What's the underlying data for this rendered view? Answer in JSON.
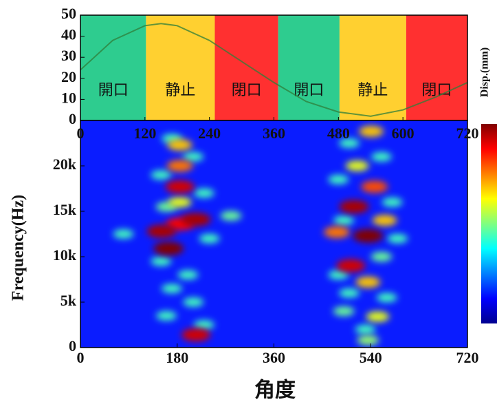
{
  "chart_data": [
    {
      "type": "line",
      "y_label": "Disp.(mm)",
      "x": [
        0,
        60,
        120,
        150,
        180,
        240,
        300,
        360,
        420,
        480,
        540,
        600,
        660,
        720
      ],
      "values": [
        24,
        38,
        45,
        46,
        45,
        38,
        28,
        18,
        9,
        4,
        2,
        5,
        11,
        18
      ],
      "color": "#2f7f3a",
      "xlim": [
        0,
        720
      ],
      "xticks": [
        0,
        120,
        240,
        360,
        480,
        600,
        720
      ],
      "ylim": [
        0,
        50
      ],
      "yticks": [
        0,
        10,
        20,
        30,
        40,
        50
      ],
      "phases": [
        {
          "label": "開口",
          "color": "#2ecc8f",
          "start": 0,
          "end": 122
        },
        {
          "label": "静止",
          "color": "#ffd030",
          "start": 122,
          "end": 250
        },
        {
          "label": "閉口",
          "color": "#ff3030",
          "start": 250,
          "end": 368
        },
        {
          "label": "開口",
          "color": "#2ecc8f",
          "start": 368,
          "end": 482
        },
        {
          "label": "静止",
          "color": "#ffd030",
          "start": 482,
          "end": 606
        },
        {
          "label": "閉口",
          "color": "#ff3030",
          "start": 606,
          "end": 720
        }
      ]
    },
    {
      "type": "heatmap",
      "x_label": "角度",
      "y_label": "Frequency(Hz)",
      "xlim": [
        0,
        720
      ],
      "xticks": [
        0,
        180,
        360,
        540,
        720
      ],
      "ylim": [
        0,
        25000
      ],
      "yticks": [
        {
          "value": 0,
          "label": "0"
        },
        {
          "value": 5000,
          "label": "5k"
        },
        {
          "value": 10000,
          "label": "10k"
        },
        {
          "value": 15000,
          "label": "15k"
        },
        {
          "value": 20000,
          "label": "20k"
        }
      ],
      "zlim": [
        0,
        1
      ],
      "hotspots": [
        {
          "x": 170,
          "y": 23000,
          "value": 0.3
        },
        {
          "x": 210,
          "y": 21000,
          "value": 0.3
        },
        {
          "x": 150,
          "y": 19000,
          "value": 0.3
        },
        {
          "x": 230,
          "y": 17000,
          "value": 0.3
        },
        {
          "x": 160,
          "y": 15500,
          "value": 0.35
        },
        {
          "x": 240,
          "y": 12000,
          "value": 0.3
        },
        {
          "x": 150,
          "y": 9500,
          "value": 0.3
        },
        {
          "x": 200,
          "y": 8000,
          "value": 0.3
        },
        {
          "x": 170,
          "y": 6500,
          "value": 0.3
        },
        {
          "x": 210,
          "y": 5000,
          "value": 0.3
        },
        {
          "x": 160,
          "y": 3500,
          "value": 0.3
        },
        {
          "x": 230,
          "y": 2500,
          "value": 0.3
        },
        {
          "x": 80,
          "y": 12500,
          "value": 0.3
        },
        {
          "x": 280,
          "y": 14500,
          "value": 0.35
        },
        {
          "x": 500,
          "y": 22500,
          "value": 0.3
        },
        {
          "x": 560,
          "y": 21000,
          "value": 0.3
        },
        {
          "x": 480,
          "y": 18500,
          "value": 0.3
        },
        {
          "x": 580,
          "y": 16000,
          "value": 0.3
        },
        {
          "x": 490,
          "y": 14000,
          "value": 0.3
        },
        {
          "x": 590,
          "y": 12000,
          "value": 0.3
        },
        {
          "x": 560,
          "y": 10000,
          "value": 0.35
        },
        {
          "x": 480,
          "y": 8000,
          "value": 0.3
        },
        {
          "x": 500,
          "y": 6000,
          "value": 0.3
        },
        {
          "x": 570,
          "y": 5500,
          "value": 0.3
        },
        {
          "x": 490,
          "y": 4000,
          "value": 0.35
        },
        {
          "x": 530,
          "y": 2000,
          "value": 0.3
        },
        {
          "x": 185,
          "y": 22300,
          "value": 0.6
        },
        {
          "x": 185,
          "y": 20000,
          "value": 0.7
        },
        {
          "x": 185,
          "y": 16000,
          "value": 0.5
        },
        {
          "x": 185,
          "y": 17700,
          "value": 0.9
        },
        {
          "x": 185,
          "y": 13600,
          "value": 0.85
        },
        {
          "x": 151,
          "y": 12800,
          "value": 0.95
        },
        {
          "x": 164,
          "y": 10900,
          "value": 1
        },
        {
          "x": 215,
          "y": 14100,
          "value": 0.95
        },
        {
          "x": 215,
          "y": 1400,
          "value": 0.9
        },
        {
          "x": 541,
          "y": 23800,
          "value": 0.6
        },
        {
          "x": 515,
          "y": 20000,
          "value": 0.5
        },
        {
          "x": 547,
          "y": 17700,
          "value": 0.75
        },
        {
          "x": 509,
          "y": 15500,
          "value": 0.95
        },
        {
          "x": 566,
          "y": 14000,
          "value": 0.6
        },
        {
          "x": 477,
          "y": 12700,
          "value": 0.7
        },
        {
          "x": 535,
          "y": 12300,
          "value": 1
        },
        {
          "x": 503,
          "y": 9000,
          "value": 0.9
        },
        {
          "x": 535,
          "y": 7200,
          "value": 0.6
        },
        {
          "x": 553,
          "y": 3400,
          "value": 0.5
        },
        {
          "x": 535,
          "y": 800,
          "value": 0.4
        }
      ]
    }
  ]
}
